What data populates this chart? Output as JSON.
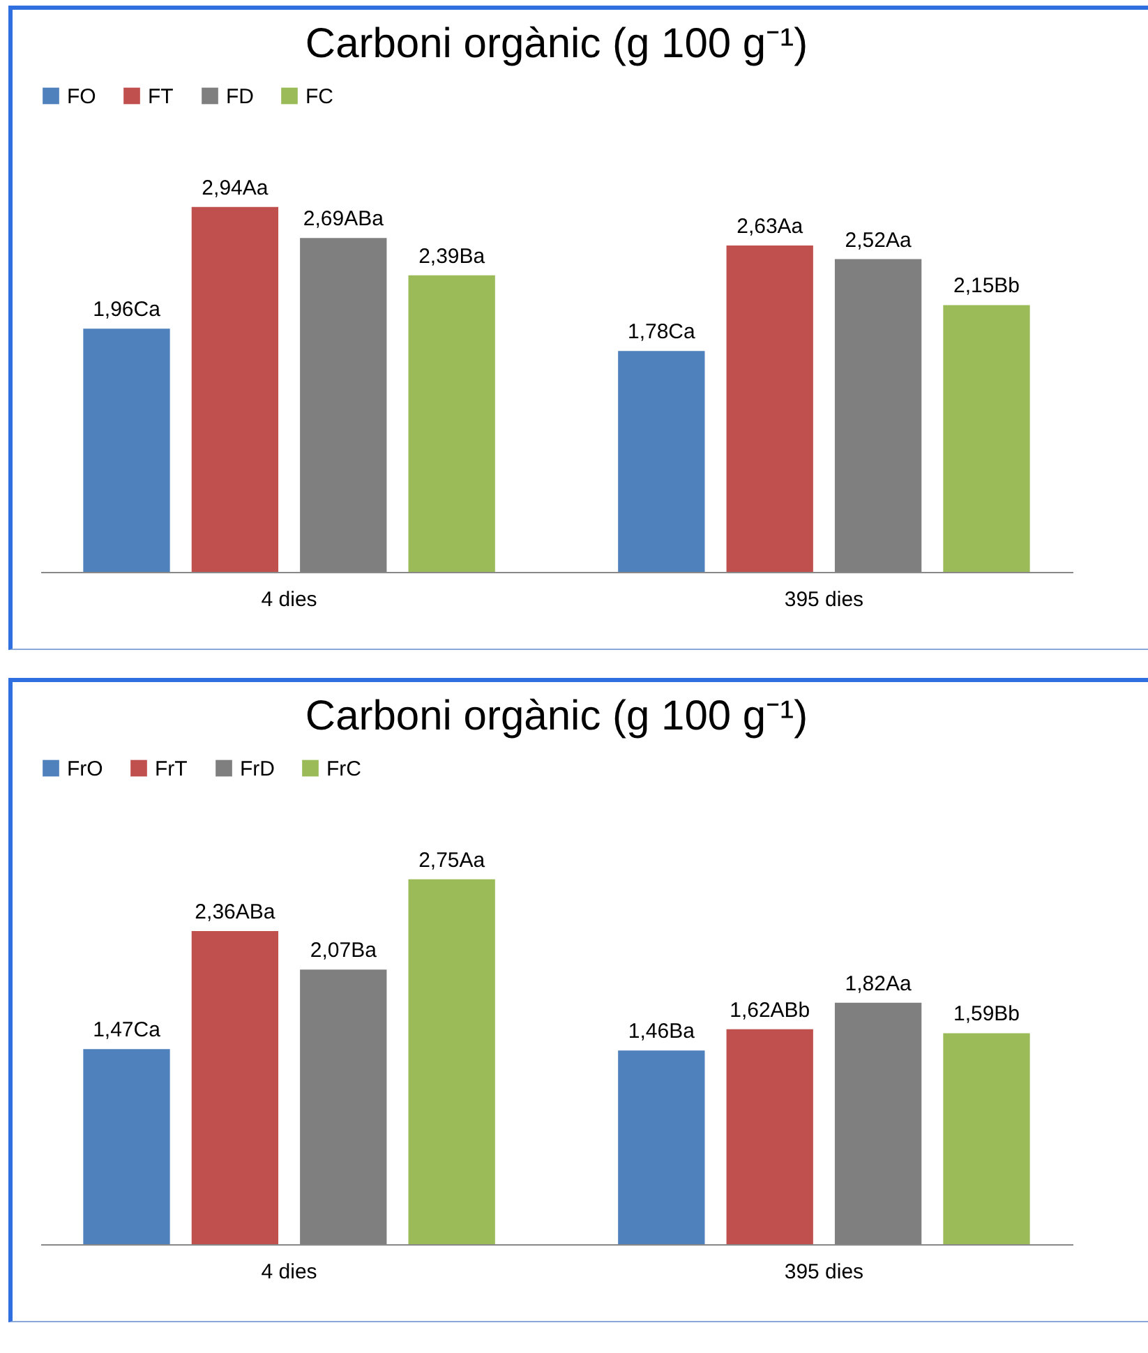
{
  "chart_data": [
    {
      "type": "bar",
      "title": "Carboni orgànic (g 100 g⁻¹)",
      "categories": [
        "4 dies",
        "395 dies"
      ],
      "legend": "top",
      "grid": false,
      "series": [
        {
          "name": "FO",
          "color": "#4f81bd",
          "values": [
            1.96,
            1.78
          ],
          "value_labels": [
            "1,96Ca",
            "1,78Ca"
          ]
        },
        {
          "name": "FT",
          "color": "#c0504d",
          "values": [
            2.94,
            2.63
          ],
          "value_labels": [
            "2,94Aa",
            "2,63Aa"
          ]
        },
        {
          "name": "FD",
          "color": "#7f7f7f",
          "values": [
            2.69,
            2.52
          ],
          "value_labels": [
            "2,69ABa",
            "2,52Aa"
          ]
        },
        {
          "name": "FC",
          "color": "#9bbb59",
          "values": [
            2.39,
            2.15
          ],
          "value_labels": [
            "2,39Ba",
            "2,15Bb"
          ]
        }
      ]
    },
    {
      "type": "bar",
      "title": "Carboni orgànic (g 100 g⁻¹)",
      "categories": [
        "4 dies",
        "395 dies"
      ],
      "legend": "top",
      "grid": false,
      "series": [
        {
          "name": "FrO",
          "color": "#4f81bd",
          "values": [
            1.47,
            1.46
          ],
          "value_labels": [
            "1,47Ca",
            "1,46Ba"
          ]
        },
        {
          "name": "FrT",
          "color": "#c0504d",
          "values": [
            2.36,
            1.62
          ],
          "value_labels": [
            "2,36ABa",
            "1,62ABb"
          ]
        },
        {
          "name": "FrD",
          "color": "#7f7f7f",
          "values": [
            2.07,
            1.82
          ],
          "value_labels": [
            "2,07Ba",
            "1,82Aa"
          ]
        },
        {
          "name": "FrC",
          "color": "#9bbb59",
          "values": [
            2.75,
            1.59
          ],
          "value_labels": [
            "2,75Aa",
            "1,59Bb"
          ]
        }
      ]
    }
  ]
}
